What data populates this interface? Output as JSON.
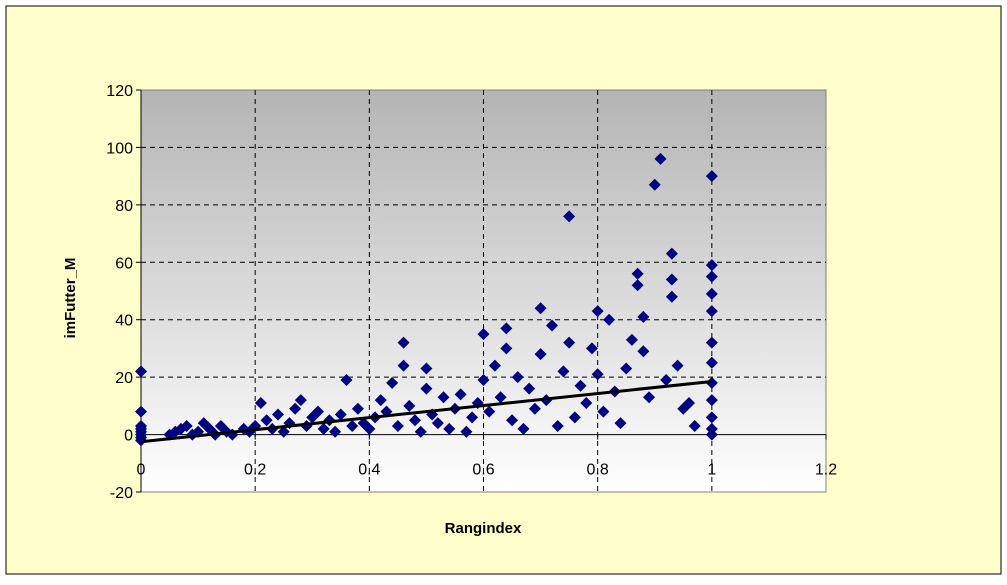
{
  "chart_data": {
    "type": "scatter",
    "xlabel": "Rangindex",
    "ylabel": "imFutter_M",
    "xlim": [
      0,
      1.2
    ],
    "ylim": [
      -20,
      120
    ],
    "xticks": [
      "0",
      "0.2",
      "0.4",
      "0.6",
      "0.8",
      "1",
      "1.2"
    ],
    "yticks": [
      "-20",
      "0",
      "20",
      "40",
      "60",
      "80",
      "100",
      "120"
    ],
    "grid": true,
    "legend": "none",
    "colors": {
      "background": "#ffffcc",
      "plot_top": "#b4b4b4",
      "plot_bottom": "#ffffff",
      "marker": "#000080",
      "trendline": "#000000"
    },
    "trendline": {
      "x": [
        0,
        1
      ],
      "y": [
        -2.5,
        18.5
      ]
    },
    "series": [
      {
        "marker": "diamond",
        "points": [
          [
            0,
            22
          ],
          [
            0,
            8
          ],
          [
            0,
            3
          ],
          [
            0,
            1
          ],
          [
            0,
            0
          ],
          [
            0,
            -1
          ],
          [
            0,
            2
          ],
          [
            0,
            -2
          ],
          [
            0.05,
            0
          ],
          [
            0.06,
            1
          ],
          [
            0.07,
            2
          ],
          [
            0.08,
            3
          ],
          [
            0.09,
            0
          ],
          [
            0.1,
            1
          ],
          [
            0.11,
            4
          ],
          [
            0.12,
            2
          ],
          [
            0.13,
            0
          ],
          [
            0.14,
            3
          ],
          [
            0.15,
            1
          ],
          [
            0.16,
            0
          ],
          [
            0.18,
            2
          ],
          [
            0.19,
            1
          ],
          [
            0.2,
            3
          ],
          [
            0.21,
            11
          ],
          [
            0.22,
            5
          ],
          [
            0.23,
            2
          ],
          [
            0.24,
            7
          ],
          [
            0.25,
            1
          ],
          [
            0.26,
            4
          ],
          [
            0.27,
            9
          ],
          [
            0.28,
            12
          ],
          [
            0.29,
            3
          ],
          [
            0.3,
            6
          ],
          [
            0.31,
            8
          ],
          [
            0.32,
            2
          ],
          [
            0.33,
            5
          ],
          [
            0.34,
            1
          ],
          [
            0.35,
            7
          ],
          [
            0.36,
            19
          ],
          [
            0.37,
            3
          ],
          [
            0.38,
            9
          ],
          [
            0.39,
            4
          ],
          [
            0.4,
            2
          ],
          [
            0.41,
            6
          ],
          [
            0.42,
            12
          ],
          [
            0.43,
            8
          ],
          [
            0.44,
            18
          ],
          [
            0.45,
            3
          ],
          [
            0.46,
            32
          ],
          [
            0.46,
            24
          ],
          [
            0.47,
            10
          ],
          [
            0.48,
            5
          ],
          [
            0.49,
            1
          ],
          [
            0.5,
            23
          ],
          [
            0.5,
            16
          ],
          [
            0.51,
            7
          ],
          [
            0.52,
            4
          ],
          [
            0.53,
            13
          ],
          [
            0.54,
            2
          ],
          [
            0.55,
            9
          ],
          [
            0.56,
            14
          ],
          [
            0.57,
            1
          ],
          [
            0.58,
            6
          ],
          [
            0.59,
            11
          ],
          [
            0.6,
            35
          ],
          [
            0.6,
            19
          ],
          [
            0.61,
            8
          ],
          [
            0.62,
            24
          ],
          [
            0.63,
            13
          ],
          [
            0.64,
            37
          ],
          [
            0.64,
            30
          ],
          [
            0.65,
            5
          ],
          [
            0.66,
            20
          ],
          [
            0.67,
            2
          ],
          [
            0.68,
            16
          ],
          [
            0.69,
            9
          ],
          [
            0.7,
            44
          ],
          [
            0.7,
            28
          ],
          [
            0.71,
            12
          ],
          [
            0.72,
            38
          ],
          [
            0.73,
            3
          ],
          [
            0.74,
            22
          ],
          [
            0.75,
            76
          ],
          [
            0.75,
            32
          ],
          [
            0.76,
            6
          ],
          [
            0.77,
            17
          ],
          [
            0.78,
            11
          ],
          [
            0.79,
            30
          ],
          [
            0.8,
            43
          ],
          [
            0.8,
            21
          ],
          [
            0.81,
            8
          ],
          [
            0.82,
            40
          ],
          [
            0.83,
            15
          ],
          [
            0.84,
            4
          ],
          [
            0.85,
            23
          ],
          [
            0.86,
            33
          ],
          [
            0.87,
            56
          ],
          [
            0.87,
            52
          ],
          [
            0.88,
            41
          ],
          [
            0.88,
            29
          ],
          [
            0.89,
            13
          ],
          [
            0.9,
            87
          ],
          [
            0.91,
            96
          ],
          [
            0.92,
            19
          ],
          [
            0.93,
            63
          ],
          [
            0.93,
            54
          ],
          [
            0.93,
            48
          ],
          [
            0.94,
            24
          ],
          [
            0.95,
            9
          ],
          [
            0.96,
            11
          ],
          [
            0.97,
            3
          ],
          [
            1,
            90
          ],
          [
            1,
            59
          ],
          [
            1,
            55
          ],
          [
            1,
            49
          ],
          [
            1,
            43
          ],
          [
            1,
            32
          ],
          [
            1,
            25
          ],
          [
            1,
            18
          ],
          [
            1,
            12
          ],
          [
            1,
            6
          ],
          [
            1,
            2
          ],
          [
            1,
            0
          ]
        ]
      }
    ]
  }
}
